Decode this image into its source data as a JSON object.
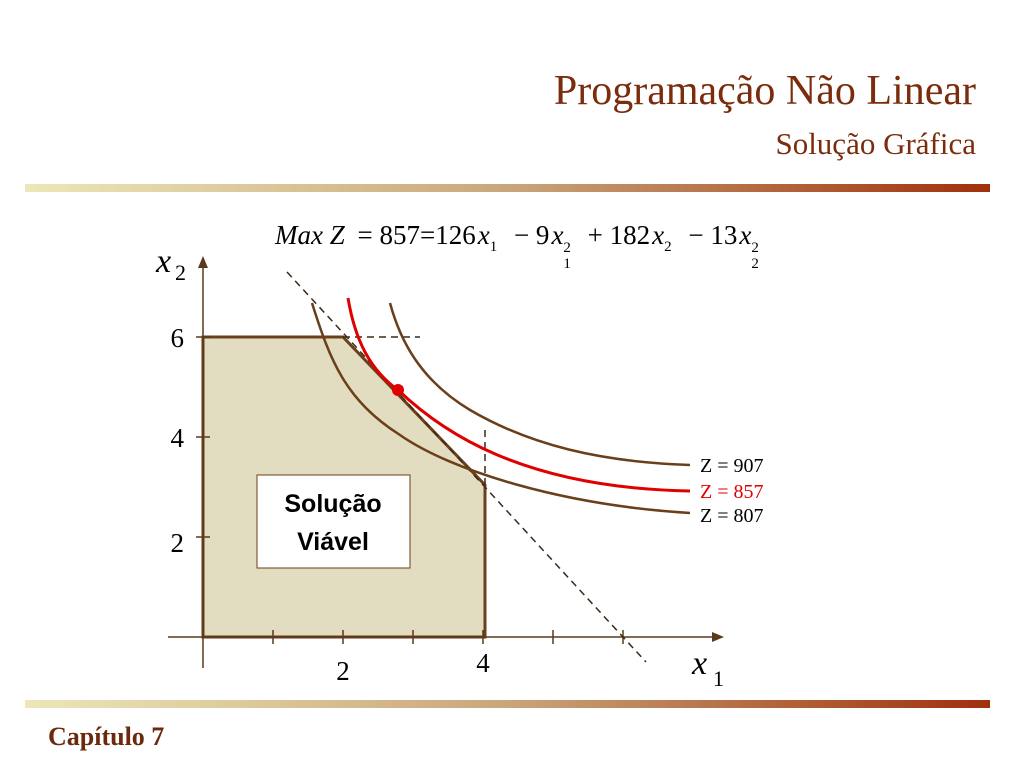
{
  "header": {
    "title": "Programação Não Linear",
    "subtitle": "Solução Gráfica"
  },
  "formula": {
    "parts": [
      "Max Z",
      "= 857=126",
      "x",
      "1",
      "− 9",
      "x",
      "2",
      "1",
      "+ 182",
      "x",
      "2",
      "− 13",
      "x",
      "2",
      "2"
    ]
  },
  "axes": {
    "y_label": {
      "symbol": "x",
      "index": "2"
    },
    "x_label": {
      "symbol": "x",
      "index": "1"
    },
    "y_ticks": [
      "6",
      "4",
      "2"
    ],
    "x_ticks": [
      "2",
      "4"
    ]
  },
  "region_label": [
    "Solução",
    "Viável"
  ],
  "curves": [
    "Z = 907",
    "Z = 857",
    "Z = 807"
  ],
  "footer": "Capítulo 7"
}
